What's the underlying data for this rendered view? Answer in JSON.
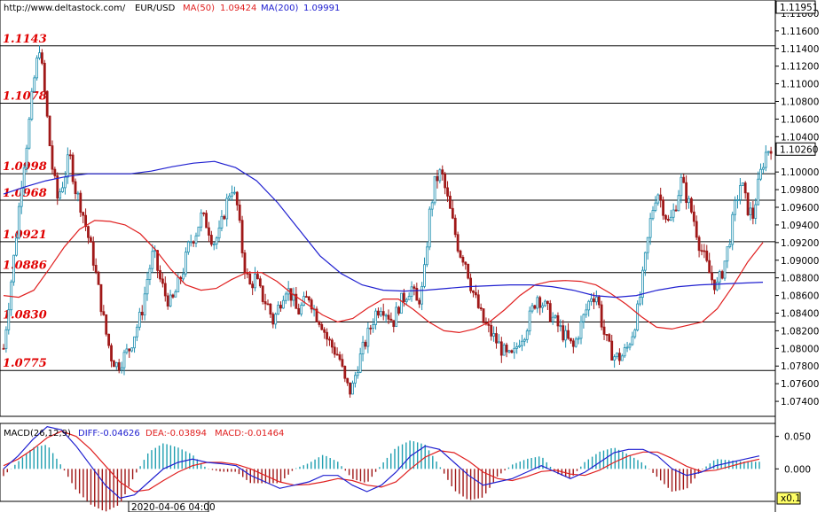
{
  "header": {
    "site": "http://www.deltastock.com/",
    "symbol": "EUR/USD",
    "ma50_label": "MA(50)",
    "ma50_value": "1.09424",
    "ma200_label": "MA(200)",
    "ma200_value": "1.09991"
  },
  "colors": {
    "bull": "#1f8fb0",
    "bear": "#a01818",
    "ma50": "#e02020",
    "ma200": "#2020d0",
    "level_text": "#e00000",
    "macd_diff": "#2020d0",
    "macd_dea": "#e02020",
    "macd_hist": "#1f9fb0"
  },
  "price_axis": {
    "top_label": "1.11951",
    "current_label": "1.10260",
    "ticks": [
      "1.11800",
      "1.11600",
      "1.11400",
      "1.11200",
      "1.11000",
      "1.10800",
      "1.10600",
      "1.10400",
      "1.10000",
      "1.09800",
      "1.09600",
      "1.09400",
      "1.09200",
      "1.09000",
      "1.08800",
      "1.08600",
      "1.08400",
      "1.08200",
      "1.08000",
      "1.07800",
      "1.07600",
      "1.07400"
    ]
  },
  "macd": {
    "label": "MACD(26,12,9)",
    "diff_label": "DIFF:-0.04626",
    "dea_label": "DEA:-0.03894",
    "macd_label": "MACD:-0.01464",
    "ticks": [
      "0.050",
      "0.000"
    ]
  },
  "time_axis": {
    "cursor_label": "2020-04-06 04:00",
    "zoom_label": "x0.1"
  },
  "chart_data": {
    "type": "candlestick",
    "symbol": "EUR/USD",
    "y_range": [
      1.0723,
      1.1195
    ],
    "levels": [
      {
        "label": "1.1143",
        "value": 1.1143
      },
      {
        "label": "1.1078",
        "value": 1.1078
      },
      {
        "label": "1.0998",
        "value": 1.0998
      },
      {
        "label": "1.0968",
        "value": 1.0968
      },
      {
        "label": "1.0921",
        "value": 1.0921
      },
      {
        "label": "1.0886",
        "value": 1.0886
      },
      {
        "label": "1.0830",
        "value": 1.083
      },
      {
        "label": "1.0775",
        "value": 1.0775
      }
    ],
    "close_path": [
      1.08,
      1.086,
      1.092,
      1.099,
      1.104,
      1.11,
      1.1143,
      1.108,
      1.101,
      1.097,
      1.099,
      1.102,
      1.098,
      1.096,
      1.093,
      1.09,
      1.086,
      1.082,
      1.079,
      1.078,
      1.079,
      1.08,
      1.082,
      1.084,
      1.088,
      1.091,
      1.088,
      1.086,
      1.085,
      1.087,
      1.089,
      1.092,
      1.093,
      1.095,
      1.094,
      1.092,
      1.093,
      1.096,
      1.0985,
      1.096,
      1.09,
      1.087,
      1.088,
      1.086,
      1.085,
      1.083,
      1.085,
      1.087,
      1.086,
      1.084,
      1.085,
      1.086,
      1.084,
      1.083,
      1.081,
      1.08,
      1.079,
      1.076,
      1.075,
      1.078,
      1.08,
      1.082,
      1.084,
      1.085,
      1.084,
      1.083,
      1.085,
      1.086,
      1.087,
      1.085,
      1.087,
      1.095,
      1.099,
      1.1,
      1.097,
      1.094,
      1.091,
      1.09,
      1.087,
      1.085,
      1.083,
      1.082,
      1.081,
      1.08,
      1.079,
      1.079,
      1.081,
      1.082,
      1.084,
      1.086,
      1.085,
      1.084,
      1.083,
      1.082,
      1.081,
      1.08,
      1.082,
      1.084,
      1.086,
      1.086,
      1.082,
      1.08,
      1.079,
      1.079,
      1.08,
      1.082,
      1.085,
      1.09,
      1.095,
      1.098,
      1.096,
      1.094,
      1.096,
      1.099,
      1.097,
      1.095,
      1.092,
      1.09,
      1.088,
      1.087,
      1.089,
      1.092,
      1.096,
      1.099,
      1.096,
      1.095,
      1.099,
      1.102,
      1.103
    ],
    "ma50": [
      1.086,
      1.0858,
      1.0866,
      1.089,
      1.0915,
      1.0935,
      1.0945,
      1.0944,
      1.094,
      1.093,
      1.0912,
      1.089,
      1.0872,
      1.0866,
      1.0868,
      1.0878,
      1.0886,
      1.0886,
      1.0876,
      1.0862,
      1.085,
      1.0838,
      1.083,
      1.0834,
      1.0846,
      1.0856,
      1.0856,
      1.0844,
      1.083,
      1.082,
      1.0818,
      1.0822,
      1.083,
      1.0844,
      1.086,
      1.0872,
      1.0876,
      1.0877,
      1.0876,
      1.0872,
      1.0862,
      1.085,
      1.0836,
      1.0824,
      1.0822,
      1.0826,
      1.083,
      1.0845,
      1.087,
      1.0898,
      1.092
    ],
    "ma200": [
      1.0975,
      1.0983,
      1.099,
      1.0995,
      1.0998,
      1.0998,
      1.0998,
      1.1001,
      1.1006,
      1.101,
      1.1012,
      1.1005,
      1.099,
      1.0965,
      1.0935,
      1.0905,
      1.0885,
      1.0872,
      1.0866,
      1.0865,
      1.0866,
      1.0868,
      1.087,
      1.0871,
      1.0872,
      1.0872,
      1.087,
      1.0866,
      1.086,
      1.0858,
      1.086,
      1.0866,
      1.087,
      1.0872,
      1.0873,
      1.0874,
      1.0875
    ],
    "macd_range": [
      -0.05,
      0.07
    ],
    "macd_diff": [
      0.0,
      0.02,
      0.045,
      0.065,
      0.06,
      0.035,
      0.005,
      -0.025,
      -0.045,
      -0.04,
      -0.02,
      0.0,
      0.01,
      0.015,
      0.01,
      0.008,
      0.005,
      -0.01,
      -0.02,
      -0.03,
      -0.025,
      -0.02,
      -0.01,
      -0.01,
      -0.025,
      -0.035,
      -0.025,
      -0.005,
      0.02,
      0.035,
      0.03,
      0.01,
      -0.01,
      -0.025,
      -0.02,
      -0.015,
      -0.005,
      0.005,
      -0.005,
      -0.015,
      -0.005,
      0.01,
      0.025,
      0.03,
      0.03,
      0.02,
      0.0,
      -0.01,
      -0.005,
      0.005,
      0.01,
      0.015,
      0.02
    ],
    "macd_dea": [
      0.005,
      0.015,
      0.03,
      0.048,
      0.058,
      0.05,
      0.03,
      0.005,
      -0.02,
      -0.035,
      -0.032,
      -0.018,
      -0.005,
      0.005,
      0.01,
      0.01,
      0.007,
      0.0,
      -0.01,
      -0.02,
      -0.025,
      -0.024,
      -0.02,
      -0.015,
      -0.018,
      -0.025,
      -0.028,
      -0.02,
      0.0,
      0.018,
      0.028,
      0.025,
      0.012,
      -0.005,
      -0.015,
      -0.018,
      -0.012,
      -0.004,
      -0.002,
      -0.008,
      -0.01,
      -0.002,
      0.01,
      0.02,
      0.026,
      0.026,
      0.016,
      0.004,
      -0.004,
      -0.002,
      0.004,
      0.01,
      0.015
    ]
  }
}
